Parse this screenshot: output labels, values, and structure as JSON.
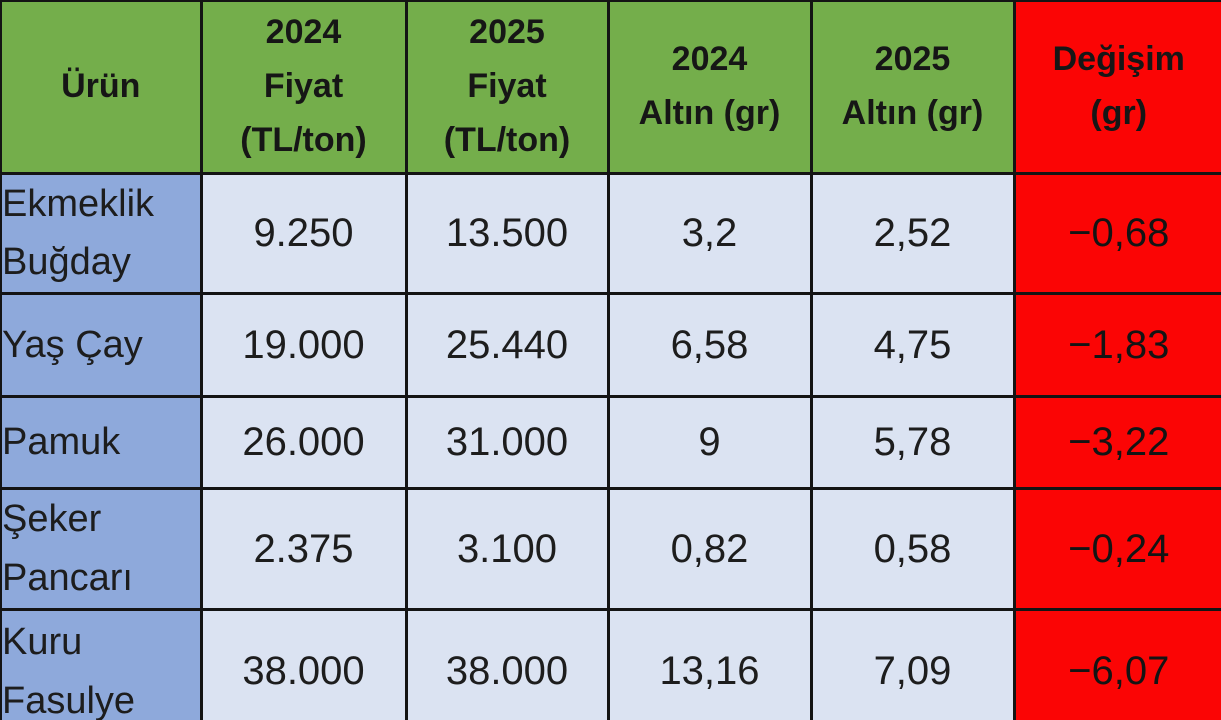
{
  "colors": {
    "header_green": "#74ae4b",
    "change_red": "#fb0505",
    "product_blue": "#8ea9db",
    "value_light_blue": "#dbe3f2",
    "border_black": "#141414",
    "text_dark": "#1d1d1d"
  },
  "table": {
    "header": {
      "urun": "Ürün",
      "fiyat2024": "2024\nFiyat\n(TL/ton)",
      "fiyat2025": "2025\nFiyat\n(TL/ton)",
      "altin2024": "2024\nAltın (gr)",
      "altin2025": "2025\nAltın (gr)",
      "degisim": "Değişim\n(gr)"
    },
    "rows": [
      {
        "urun": "Ekmeklik Buğday",
        "fiyat2024": "9.250",
        "fiyat2025": "13.500",
        "altin2024": "3,2",
        "altin2025": "2,52",
        "degisim": "−0,68"
      },
      {
        "urun": "Yaş Çay",
        "fiyat2024": "19.000",
        "fiyat2025": "25.440",
        "altin2024": "6,58",
        "altin2025": "4,75",
        "degisim": "−1,83"
      },
      {
        "urun": "Pamuk",
        "fiyat2024": "26.000",
        "fiyat2025": "31.000",
        "altin2024": "9",
        "altin2025": "5,78",
        "degisim": "−3,22"
      },
      {
        "urun": "Şeker Pancarı",
        "fiyat2024": "2.375",
        "fiyat2025": "3.100",
        "altin2024": "0,82",
        "altin2025": "0,58",
        "degisim": "−0,24"
      },
      {
        "urun": "Kuru Fasulye",
        "fiyat2024": "38.000",
        "fiyat2025": "38.000",
        "altin2024": "13,16",
        "altin2025": "7,09",
        "degisim": "−6,07"
      }
    ]
  },
  "chart_data": {
    "type": "table",
    "title": "Ürün fiyatları ve altın karşılığı (2024 vs 2025)",
    "columns": [
      "Ürün",
      "2024 Fiyat (TL/ton)",
      "2025 Fiyat (TL/ton)",
      "2024 Altın (gr)",
      "2025 Altın (gr)",
      "Değişim (gr)"
    ],
    "rows": [
      [
        "Ekmeklik Buğday",
        9250,
        13500,
        3.2,
        2.52,
        -0.68
      ],
      [
        "Yaş Çay",
        19000,
        25440,
        6.58,
        4.75,
        -1.83
      ],
      [
        "Pamuk",
        26000,
        31000,
        9,
        5.78,
        -3.22
      ],
      [
        "Şeker Pancarı",
        2375,
        3100,
        0.82,
        0.58,
        -0.24
      ],
      [
        "Kuru Fasulye",
        38000,
        38000,
        13.16,
        7.09,
        -6.07
      ]
    ],
    "notes": "Decimal comma / thousands dot formatting (Turkish locale); Değişim column shows negative gold-gram change highlighted in red"
  }
}
